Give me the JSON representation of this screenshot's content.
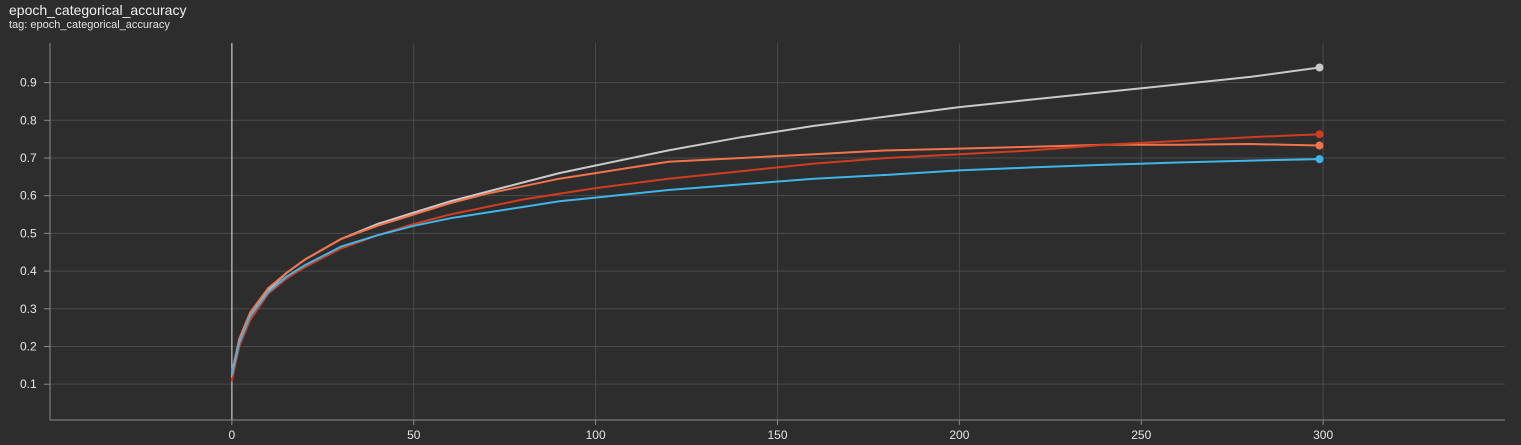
{
  "card": {
    "title": "epoch_categorical_accuracy",
    "subtitle": "tag: epoch_categorical_accuracy"
  },
  "chart_data": {
    "type": "line",
    "title": "epoch_categorical_accuracy",
    "xlabel": "",
    "ylabel": "",
    "xlim": [
      -50,
      350
    ],
    "ylim": [
      0.005,
      1.005
    ],
    "x_ticks": [
      0,
      50,
      100,
      150,
      200,
      250,
      300
    ],
    "y_ticks": [
      0.1,
      0.2,
      0.3,
      0.4,
      0.5,
      0.6,
      0.7,
      0.8,
      0.9
    ],
    "grid": true,
    "legend": "none",
    "series": [
      {
        "color": "#c9c9c9",
        "x": [
          0,
          2,
          5,
          10,
          15,
          20,
          30,
          40,
          50,
          60,
          70,
          80,
          90,
          100,
          120,
          140,
          160,
          180,
          200,
          220,
          240,
          260,
          280,
          299
        ],
        "values": [
          0.12,
          0.2,
          0.28,
          0.35,
          0.395,
          0.43,
          0.485,
          0.525,
          0.555,
          0.585,
          0.61,
          0.635,
          0.66,
          0.68,
          0.72,
          0.755,
          0.785,
          0.81,
          0.835,
          0.855,
          0.875,
          0.895,
          0.915,
          0.94
        ]
      },
      {
        "color": "#f4734a",
        "x": [
          0,
          2,
          5,
          10,
          15,
          20,
          30,
          40,
          50,
          60,
          70,
          80,
          90,
          100,
          110,
          120,
          140,
          160,
          180,
          200,
          220,
          240,
          260,
          280,
          299
        ],
        "values": [
          0.13,
          0.22,
          0.29,
          0.355,
          0.395,
          0.43,
          0.485,
          0.52,
          0.55,
          0.58,
          0.605,
          0.625,
          0.645,
          0.66,
          0.675,
          0.69,
          0.7,
          0.71,
          0.72,
          0.725,
          0.73,
          0.735,
          0.735,
          0.737,
          0.733
        ]
      },
      {
        "color": "#cf3d1e",
        "x": [
          0,
          2,
          5,
          10,
          15,
          20,
          30,
          40,
          50,
          60,
          70,
          80,
          90,
          100,
          120,
          140,
          160,
          180,
          200,
          220,
          240,
          260,
          280,
          299
        ],
        "values": [
          0.11,
          0.2,
          0.27,
          0.34,
          0.38,
          0.41,
          0.46,
          0.495,
          0.525,
          0.55,
          0.57,
          0.59,
          0.605,
          0.62,
          0.645,
          0.665,
          0.685,
          0.7,
          0.71,
          0.72,
          0.735,
          0.745,
          0.755,
          0.763
        ]
      },
      {
        "color": "#3fb6e9",
        "x": [
          0,
          2,
          5,
          10,
          15,
          20,
          30,
          40,
          50,
          60,
          70,
          80,
          90,
          100,
          120,
          140,
          160,
          180,
          200,
          220,
          240,
          260,
          280,
          299
        ],
        "values": [
          0.125,
          0.21,
          0.28,
          0.345,
          0.385,
          0.415,
          0.465,
          0.495,
          0.52,
          0.54,
          0.555,
          0.57,
          0.585,
          0.595,
          0.615,
          0.63,
          0.645,
          0.655,
          0.667,
          0.675,
          0.682,
          0.688,
          0.693,
          0.697
        ]
      }
    ]
  }
}
